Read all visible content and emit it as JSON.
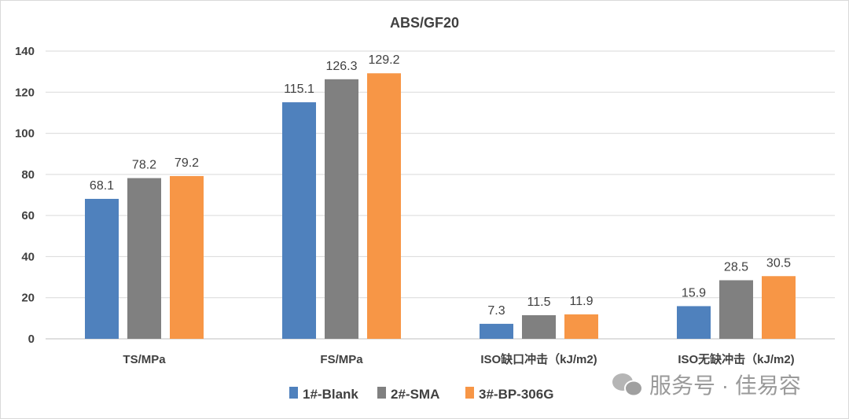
{
  "chart_data": {
    "type": "bar",
    "title": "ABS/GF20",
    "xlabel": "",
    "ylabel": "",
    "ylim": [
      0,
      140
    ],
    "yticks": [
      0,
      20,
      40,
      60,
      80,
      100,
      120,
      140
    ],
    "grid": true,
    "legend_position": "bottom",
    "categories": [
      "TS/MPa",
      "FS/MPa",
      "ISO缺口冲击（kJ/m2)",
      "ISO无缺冲击（kJ/m2)"
    ],
    "series": [
      {
        "name": "1#-Blank",
        "color": "#4f81bd",
        "values": [
          68.1,
          115.1,
          7.3,
          15.9
        ]
      },
      {
        "name": "2#-SMA",
        "color": "#808080",
        "values": [
          78.2,
          126.3,
          11.5,
          28.5
        ]
      },
      {
        "name": "3#-BP-306G",
        "color": "#f79646",
        "values": [
          79.2,
          129.2,
          11.9,
          30.5
        ]
      }
    ]
  },
  "watermark": "服务号 · 佳易容"
}
